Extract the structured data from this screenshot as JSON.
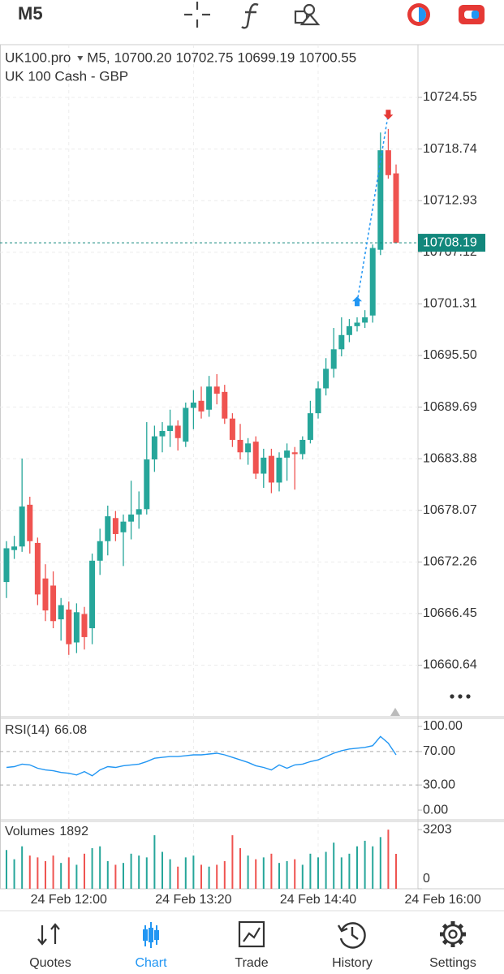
{
  "toolbar": {
    "timeframe": "M5"
  },
  "chart_data": [
    {
      "type": "candlestick",
      "symbol": "UK100.pro",
      "timeframe": "M5,",
      "ohlc_labels": [
        "10700.20",
        "10702.75",
        "10699.19",
        "10700.55"
      ],
      "description": "UK 100 Cash - GBP",
      "up_color": "#26a69a",
      "down_color": "#ef5350",
      "open": [
        10670.0,
        10673.6,
        10674.0,
        10678.7,
        10674.4,
        10670.4,
        10669.6,
        10665.8,
        10666.9,
        10663.2,
        10666.4,
        10664.8,
        10672.4,
        10674.6,
        10677.2,
        10675.6,
        10676.8,
        10677.6,
        10678.2,
        10683.8,
        10686.4,
        10687.0,
        10687.6,
        10685.8,
        10689.6,
        10690.4,
        10689.4,
        10692.0,
        10691.4,
        10688.4,
        10686.0,
        10684.6,
        10685.8,
        10682.2,
        10684.2,
        10681.2,
        10684.0,
        10684.6,
        10684.4,
        10686.0,
        10689.0,
        10691.8,
        10694.0,
        10696.2,
        10697.8,
        10698.8,
        10699.2,
        10700.0,
        10707.4,
        10718.6,
        10716.0
      ],
      "high": [
        10674.6,
        10675.2,
        10683.9,
        10679.6,
        10675.0,
        10672.0,
        10671.2,
        10668.2,
        10667.8,
        10667.6,
        10667.2,
        10673.2,
        10676.0,
        10678.6,
        10678.0,
        10677.6,
        10681.4,
        10680.2,
        10688.0,
        10687.6,
        10688.0,
        10689.4,
        10688.2,
        10690.2,
        10691.6,
        10692.0,
        10693.2,
        10693.4,
        10692.2,
        10689.0,
        10687.8,
        10686.2,
        10686.4,
        10685.0,
        10685.0,
        10684.6,
        10685.6,
        10685.2,
        10686.4,
        10690.4,
        10692.6,
        10695.2,
        10698.6,
        10699.8,
        10699.6,
        10699.8,
        10700.6,
        10708.0,
        10720.6,
        10721.0,
        10717.0
      ],
      "low": [
        10668.2,
        10672.6,
        10673.4,
        10673.2,
        10667.4,
        10665.6,
        10664.8,
        10663.4,
        10661.8,
        10662.0,
        10662.4,
        10663.0,
        10670.8,
        10673.0,
        10674.6,
        10671.8,
        10674.8,
        10676.0,
        10677.6,
        10682.4,
        10684.6,
        10685.2,
        10684.8,
        10685.2,
        10687.2,
        10688.4,
        10688.6,
        10690.0,
        10687.8,
        10685.2,
        10683.8,
        10683.2,
        10681.6,
        10680.6,
        10680.0,
        10680.2,
        10681.4,
        10680.4,
        10683.8,
        10685.6,
        10688.4,
        10691.0,
        10693.0,
        10695.4,
        10697.0,
        10698.2,
        10698.6,
        10699.2,
        10706.8,
        10715.4,
        10708.19
      ],
      "close": [
        10673.8,
        10674.0,
        10678.5,
        10674.6,
        10668.6,
        10666.8,
        10665.6,
        10667.4,
        10663.0,
        10666.6,
        10663.8,
        10672.4,
        10674.6,
        10677.4,
        10675.4,
        10676.8,
        10677.6,
        10678.2,
        10683.8,
        10686.4,
        10687.0,
        10687.6,
        10686.2,
        10689.6,
        10690.2,
        10689.2,
        10692.0,
        10691.2,
        10688.4,
        10686.0,
        10684.6,
        10685.6,
        10682.2,
        10684.0,
        10681.2,
        10684.0,
        10684.8,
        10684.4,
        10686.0,
        10689.0,
        10691.8,
        10694.0,
        10696.2,
        10697.8,
        10698.8,
        10699.2,
        10699.8,
        10707.6,
        10718.6,
        10715.8,
        10708.19
      ],
      "ylim": [
        10654.84,
        10730.49
      ],
      "yticks": [
        10724.55,
        10718.74,
        10712.93,
        10707.12,
        10701.31,
        {
          "value": 10695.5,
          "label": "10695.50"
        },
        10689.69,
        10683.88,
        10678.07,
        10672.26,
        10666.45,
        10660.64
      ],
      "xlim": [
        -0.83,
        52.81
      ],
      "xticks": [
        {
          "value": 8,
          "label": "24 Feb 12:00"
        },
        {
          "value": 24,
          "label": "24 Feb 13:20"
        },
        {
          "value": 40,
          "label": "24 Feb 14:40"
        },
        {
          "value": 56,
          "label": "24 Feb 16:00"
        }
      ],
      "grid": true,
      "last_price": 10708.19,
      "last_price_color": "#12877c",
      "trade": {
        "buy": {
          "candle": 45,
          "price": 10701.5,
          "color": "#2196f3"
        },
        "sell": {
          "candle": 49,
          "price": 10722.7,
          "color": "#e53935"
        }
      }
    },
    {
      "type": "line",
      "title": "RSI(14)",
      "last_value": 66.08,
      "color": "#2196f3",
      "values": [
        51,
        52,
        55,
        54,
        50,
        48,
        47,
        45,
        44,
        42,
        46,
        41,
        48,
        52,
        51,
        53,
        54,
        55,
        58,
        62,
        63,
        64,
        64,
        65,
        66,
        66,
        67,
        68,
        66,
        63,
        60,
        57,
        53,
        51,
        48,
        54,
        50,
        54,
        55,
        58,
        60,
        64,
        68,
        71,
        73,
        74,
        75,
        77,
        88,
        80,
        66.08
      ],
      "ylim": [
        -11.6,
        109.7
      ],
      "yticks": [
        {
          "value": 100,
          "label": "100.00"
        },
        {
          "value": 70,
          "label": "70.00"
        },
        {
          "value": 30,
          "label": "30.00"
        },
        {
          "value": 0,
          "label": "0.00"
        }
      ]
    },
    {
      "type": "bar",
      "title": "Volumes",
      "last_value": 1892,
      "values": [
        2100,
        1600,
        2300,
        1800,
        1700,
        1500,
        1800,
        1400,
        1700,
        1300,
        1900,
        2200,
        2300,
        1500,
        1300,
        1400,
        1900,
        1800,
        1700,
        2900,
        2000,
        1600,
        1200,
        1700,
        1800,
        1300,
        1200,
        1300,
        1500,
        2900,
        2200,
        1800,
        1600,
        1700,
        1900,
        1400,
        1500,
        1600,
        1300,
        1900,
        1700,
        2000,
        2500,
        1700,
        1900,
        2300,
        2600,
        2300,
        2800,
        3203,
        1892
      ],
      "ylim": [
        0,
        3650
      ],
      "yticks": [
        3203,
        0
      ]
    }
  ],
  "nav": [
    {
      "label": "Quotes"
    },
    {
      "label": "Chart",
      "active": true
    },
    {
      "label": "Trade"
    },
    {
      "label": "History"
    },
    {
      "label": "Settings"
    }
  ],
  "nav_active_color": "#2196f3"
}
